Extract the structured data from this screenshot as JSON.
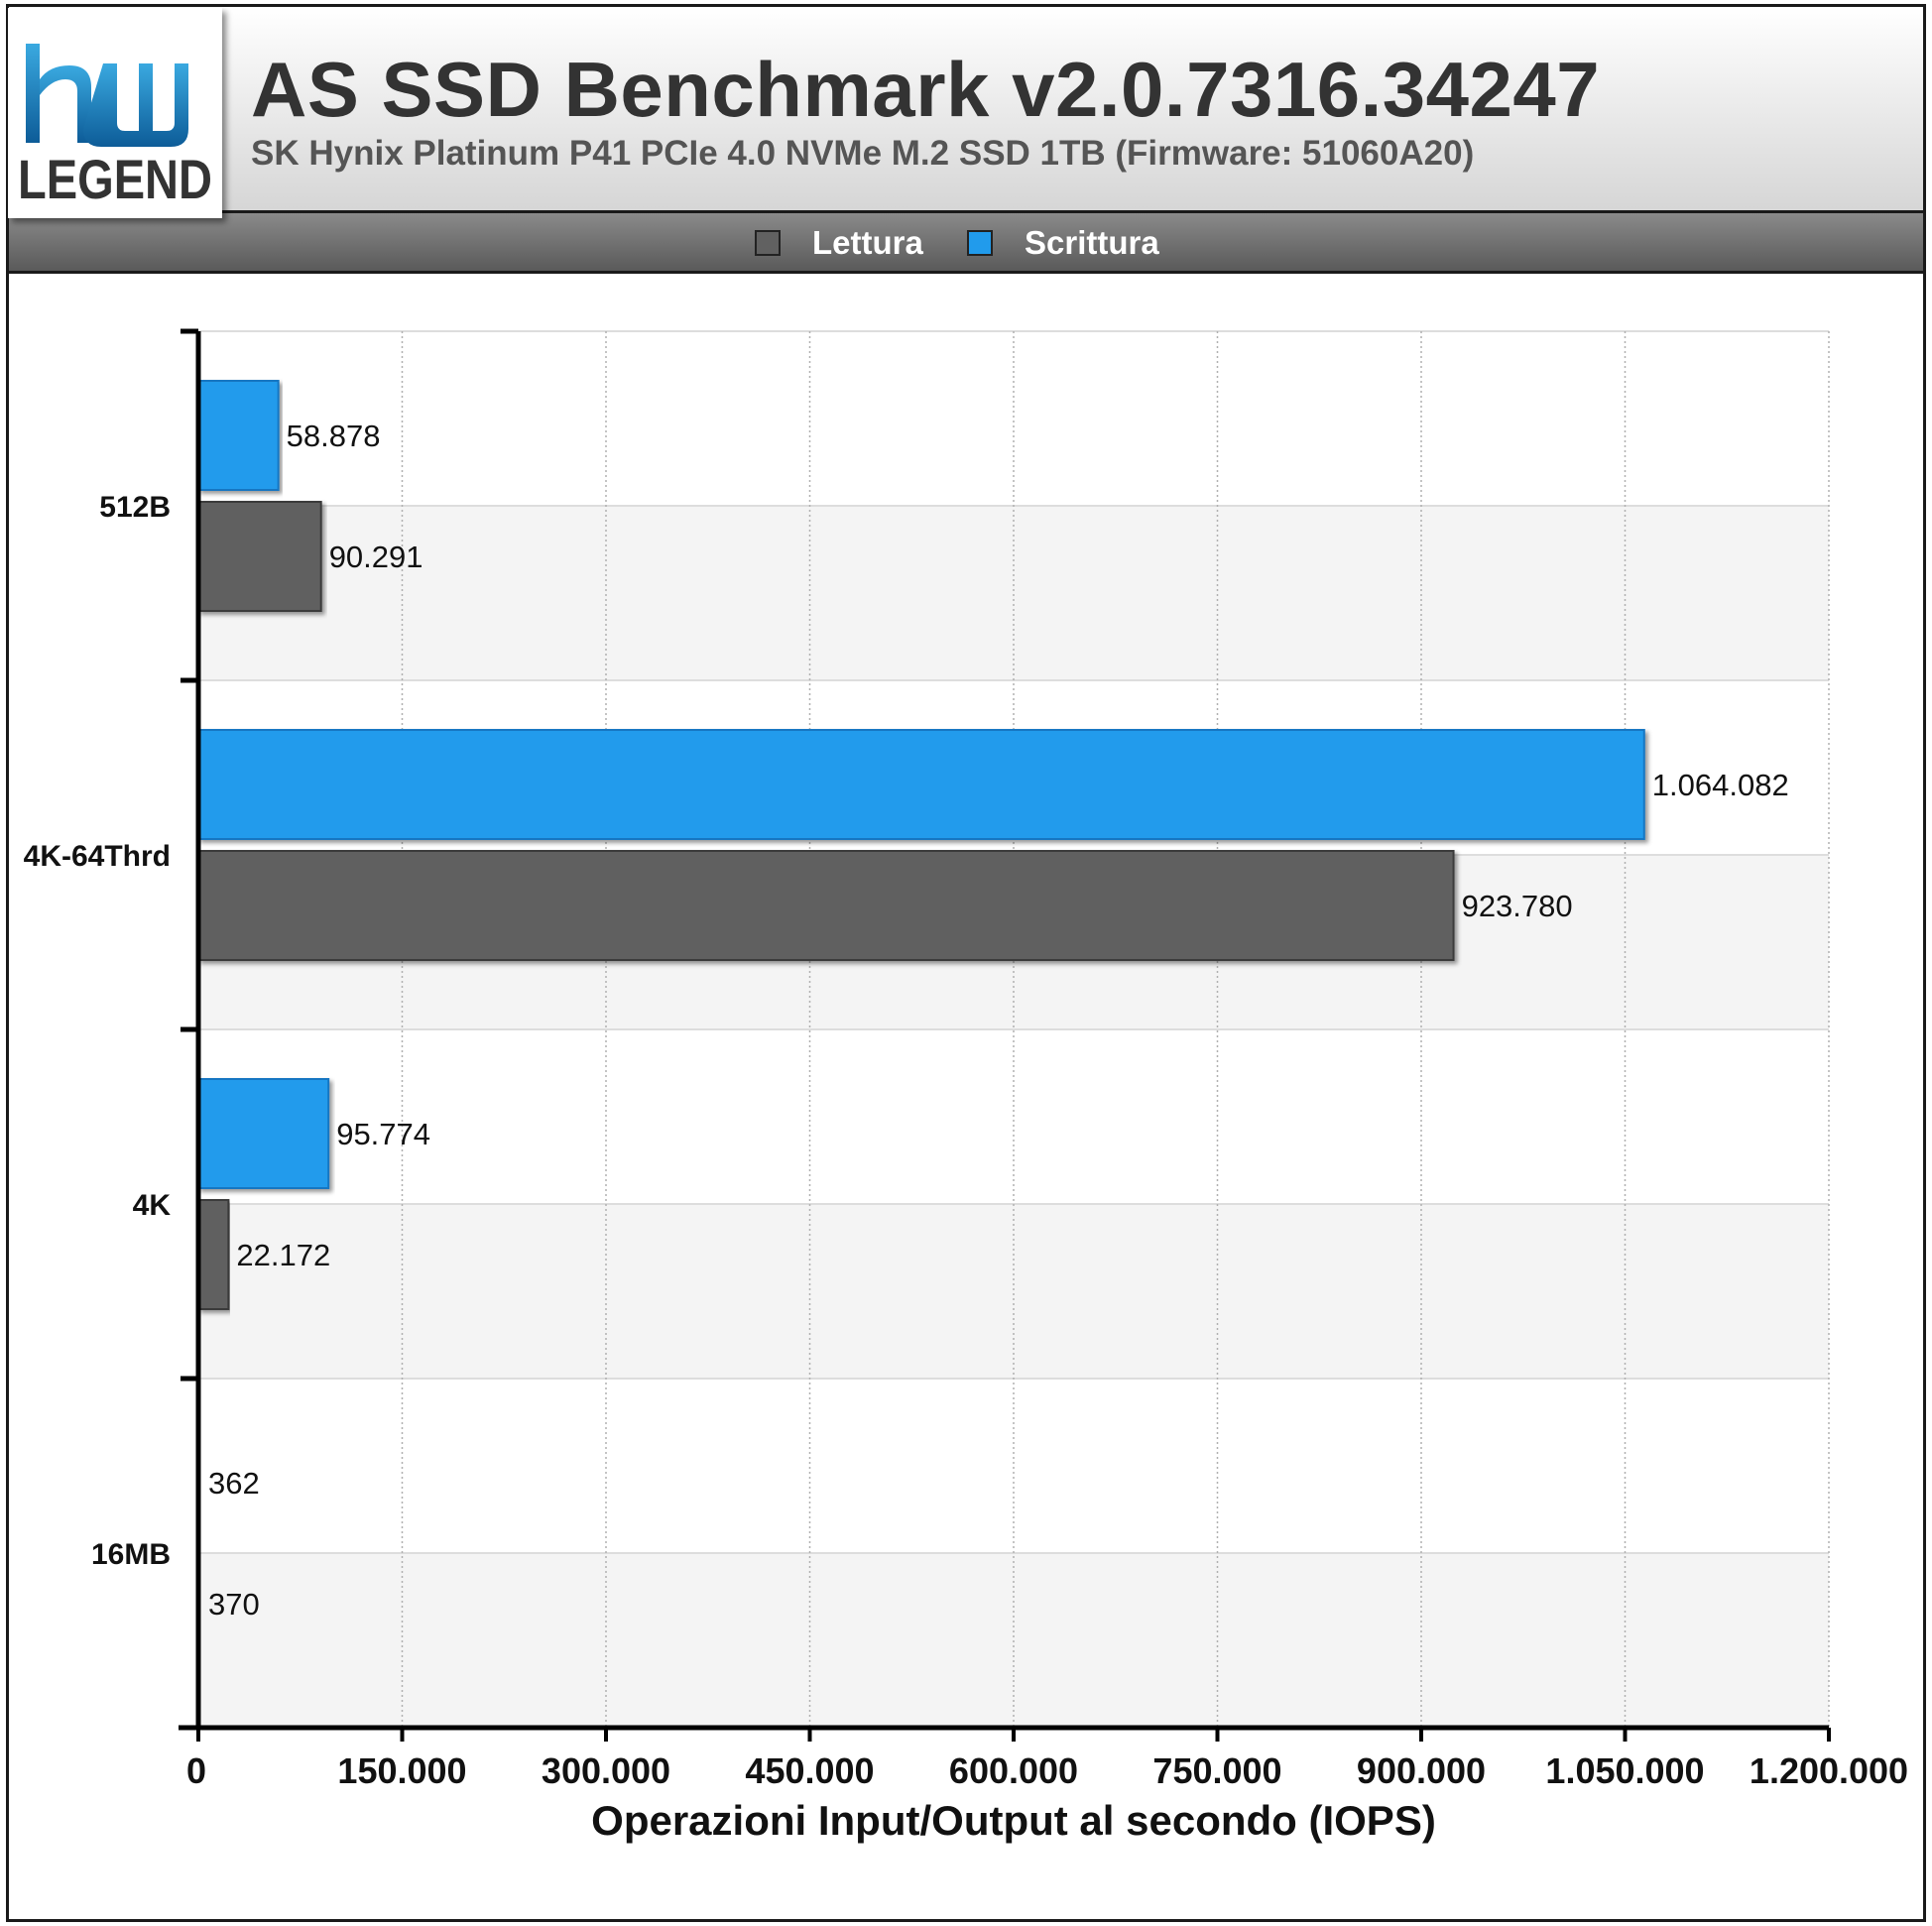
{
  "header": {
    "title": "AS SSD Benchmark v2.0.7316.34247",
    "subtitle": "SK Hynix Platinum P41 PCIe 4.0 NVMe M.2 SSD 1TB (Firmware: 51060A20)",
    "logo_text": "LEGEND"
  },
  "legend": [
    {
      "label": "Lettura",
      "color": "#616161"
    },
    {
      "label": "Scrittura",
      "color": "#219bec"
    }
  ],
  "chart_data": {
    "type": "bar",
    "orientation": "horizontal",
    "categories": [
      "512B",
      "4K-64Thrd",
      "4K",
      "16MB"
    ],
    "series": [
      {
        "name": "Scrittura",
        "color": "#219bec",
        "values": [
          58878,
          1064082,
          95774,
          362
        ],
        "labels": [
          "58.878",
          "1.064.082",
          "95.774",
          "362"
        ]
      },
      {
        "name": "Lettura",
        "color": "#616161",
        "values": [
          90291,
          923780,
          22172,
          370
        ],
        "labels": [
          "90.291",
          "923.780",
          "22.172",
          "370"
        ]
      }
    ],
    "xlim": [
      0,
      1200000
    ],
    "xticks": [
      0,
      150000,
      300000,
      450000,
      600000,
      750000,
      900000,
      1050000,
      1200000
    ],
    "xtick_labels": [
      "0",
      "150.000",
      "300.000",
      "450.000",
      "600.000",
      "750.000",
      "900.000",
      "1.050.000",
      "1.200.000"
    ],
    "xlabel": "Operazioni Input/Output al secondo (IOPS)",
    "ylabel": "",
    "grid": true,
    "legend_position": "top-center"
  }
}
